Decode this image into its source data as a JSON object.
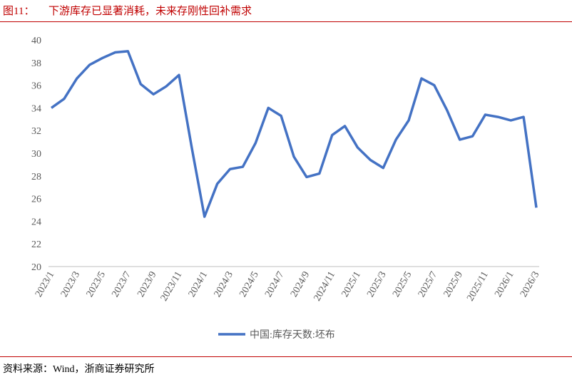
{
  "header": {
    "figure_label": "图11：",
    "title": "下游库存已显著消耗，未来存刚性回补需求"
  },
  "chart_data": {
    "type": "line",
    "categories": [
      "2023/1",
      null,
      "2023/3",
      null,
      "2023/5",
      null,
      "2023/7",
      null,
      "2023/9",
      null,
      "2023/11",
      null,
      "2024/1",
      null,
      "2024/3",
      null,
      "2024/5",
      null,
      "2024/7",
      null,
      "2024/9",
      null,
      "2024/11",
      null,
      "2025/1",
      null,
      "2025/3",
      null,
      "2025/5",
      null,
      "2025/7",
      null,
      "2025/9",
      null,
      "2025/11",
      null,
      "2026/1",
      null,
      "2026/3"
    ],
    "series": [
      {
        "name": "中国:库存天数:坯布",
        "color": "#4472c4",
        "values": [
          34.0,
          34.8,
          36.6,
          37.8,
          38.4,
          38.9,
          39.0,
          36.1,
          35.2,
          35.9,
          36.9,
          30.5,
          24.4,
          27.3,
          28.6,
          28.8,
          30.9,
          34.0,
          33.3,
          29.7,
          27.9,
          28.2,
          31.6,
          32.4,
          30.5,
          29.4,
          28.7,
          31.2,
          32.9,
          36.6,
          36.0,
          33.8,
          31.2,
          31.5,
          33.4,
          33.2,
          32.9,
          33.2,
          25.2
        ]
      }
    ],
    "ylim": [
      20,
      40
    ],
    "yticks": [
      20,
      22,
      24,
      26,
      28,
      30,
      32,
      34,
      36,
      38,
      40
    ],
    "grid": false,
    "legend": "bottom"
  },
  "footer": {
    "source": "资料来源：Wind，浙商证券研究所"
  }
}
